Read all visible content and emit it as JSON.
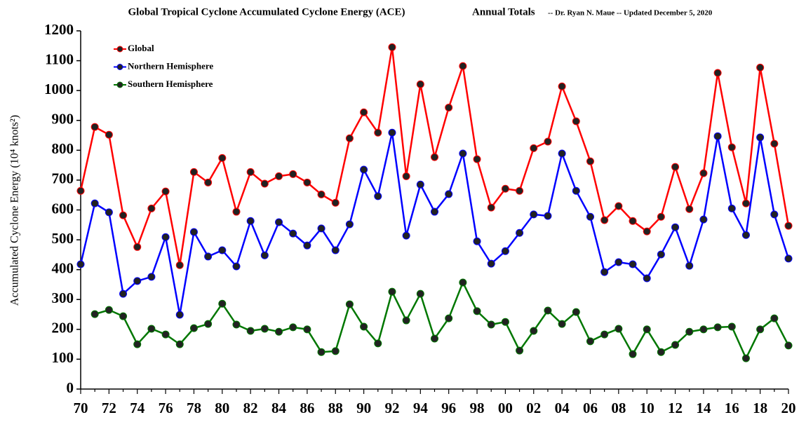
{
  "chart_data": {
    "type": "line",
    "title": "Global Tropical Cyclone Accumulated Cyclone Energy (ACE)",
    "subtitle": "Annual Totals",
    "annotation": "-- Dr. Ryan N. Maue -- Updated  December 5, 2020",
    "y_label": "Accumulated Cyclone Energy (10⁴ knots²)",
    "categories": [
      "70",
      null,
      "72",
      null,
      "74",
      null,
      "76",
      null,
      "78",
      null,
      "80",
      null,
      "82",
      null,
      "84",
      null,
      "86",
      null,
      "88",
      null,
      "90",
      null,
      "92",
      null,
      "94",
      null,
      "96",
      null,
      "98",
      null,
      "00",
      null,
      "02",
      null,
      "04",
      null,
      "06",
      null,
      "08",
      null,
      "10",
      null,
      "12",
      null,
      "14",
      null,
      "16",
      null,
      "18",
      null,
      "20"
    ],
    "series": [
      {
        "name": "Global",
        "color": "#ff0000",
        "values": [
          664,
          878,
          852,
          582,
          476,
          605,
          662,
          415,
          727,
          692,
          774,
          594,
          727,
          688,
          713,
          720,
          692,
          652,
          624,
          840,
          927,
          859,
          1145,
          713,
          1021,
          777,
          943,
          1082,
          770,
          608,
          671,
          664,
          807,
          829,
          1014,
          897,
          763,
          566,
          613,
          563,
          528,
          577,
          744,
          603,
          723,
          1059,
          810,
          622,
          1077,
          822,
          547
        ]
      },
      {
        "name": "Northern Hemisphere",
        "color": "#0000ff",
        "values": [
          418,
          622,
          592,
          319,
          362,
          376,
          509,
          249,
          526,
          444,
          465,
          411,
          563,
          448,
          559,
          521,
          481,
          538,
          465,
          552,
          735,
          646,
          859,
          514,
          685,
          594,
          653,
          789,
          495,
          420,
          462,
          523,
          585,
          580,
          789,
          664,
          577,
          392,
          425,
          418,
          371,
          451,
          542,
          413,
          568,
          847,
          605,
          516,
          843,
          585,
          437
        ]
      },
      {
        "name": "Southern Hemisphere",
        "color": "#007700",
        "values": [
          null,
          251,
          265,
          244,
          150,
          202,
          183,
          150,
          204,
          218,
          286,
          216,
          195,
          202,
          192,
          207,
          200,
          124,
          127,
          284,
          209,
          153,
          326,
          230,
          319,
          169,
          237,
          357,
          261,
          216,
          225,
          129,
          195,
          263,
          218,
          258,
          160,
          183,
          202,
          117,
          200,
          124,
          148,
          192,
          200,
          207,
          209,
          103,
          200,
          237,
          146
        ]
      }
    ],
    "ylim": [
      0,
      1200
    ],
    "yticks": [
      0,
      100,
      200,
      300,
      400,
      500,
      600,
      700,
      800,
      900,
      1000,
      1100,
      1200
    ],
    "legend": "upper-left"
  }
}
